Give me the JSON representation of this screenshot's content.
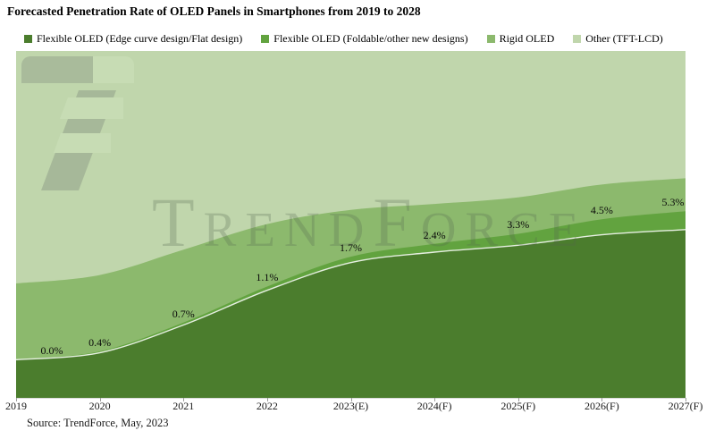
{
  "title": "Forecasted Penetration Rate of OLED Panels in Smartphones from 2019 to 2028",
  "source": "Source: TrendForce, May, 2023",
  "watermark": "TrendForce",
  "chart_data": {
    "type": "area",
    "stacked": true,
    "stack_total": 100,
    "title": "Forecasted Penetration Rate of OLED Panels in Smartphones from 2019 to 2028",
    "categories": [
      "2019",
      "2020",
      "2021",
      "2022",
      "2023(E)",
      "2024(F)",
      "2025(F)",
      "2026(F)",
      "2027(F)"
    ],
    "series": [
      {
        "name": "Flexible OLED (Edge curve design/Flat design)",
        "color": "#4b7d2d",
        "values": [
          11,
          13,
          21,
          31,
          39,
          42,
          44,
          47,
          48.5
        ]
      },
      {
        "name": "Flexible OLED (Foldable/other new designs)",
        "color": "#62a33f",
        "values": [
          0.0,
          0.4,
          0.7,
          1.1,
          1.7,
          2.4,
          3.3,
          4.5,
          5.3
        ],
        "data_labels": [
          "0.0%",
          "0.4%",
          "0.7%",
          "1.1%",
          "1.7%",
          "2.4%",
          "3.3%",
          "4.5%",
          "5.3%"
        ]
      },
      {
        "name": "Rigid OLED",
        "color": "#8cb96d",
        "values": [
          22,
          22,
          21,
          18,
          13.5,
          11.5,
          10.5,
          10,
          9.5
        ]
      },
      {
        "name": "Other (TFT-LCD)",
        "color": "#c0d6ac",
        "values": [
          67,
          64.6,
          57.3,
          49.9,
          45.8,
          44.1,
          42.2,
          38.5,
          36.7
        ]
      }
    ],
    "xlabel": "",
    "ylabel": "",
    "ylim": [
      0,
      100
    ],
    "yaxis_visible": false,
    "grid": false,
    "legend_position": "top",
    "labeled_series": "Flexible OLED (Foldable/other new designs)",
    "watermark": "TrendForce"
  }
}
